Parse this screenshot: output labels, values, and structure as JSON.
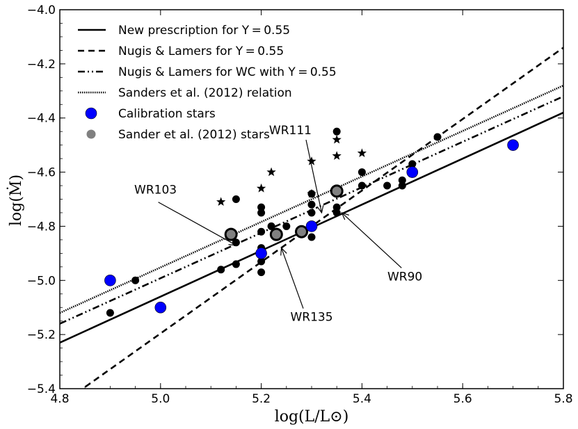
{
  "chart_data": {
    "type": "scatter",
    "xlabel": "log(L/L⊙)",
    "ylabel": "log(Ṁ)",
    "xlim": [
      4.8,
      5.8
    ],
    "ylim": [
      -5.4,
      -4.0
    ],
    "xticks": [
      4.8,
      5.0,
      5.2,
      5.4,
      5.6,
      5.8
    ],
    "xtick_labels": [
      "4.8",
      "5.0",
      "5.2",
      "5.4",
      "5.6",
      "5.8"
    ],
    "yticks": [
      -5.4,
      -5.2,
      -5.0,
      -4.8,
      -4.6,
      -4.4,
      -4.2,
      -4.0
    ],
    "ytick_labels": [
      "−5.4",
      "−5.2",
      "−5.0",
      "−4.8",
      "−4.6",
      "−4.4",
      "−4.2",
      "−4.0"
    ],
    "grid": false,
    "legend_position": "top-left",
    "lines": [
      {
        "name": "New prescription for Y = 0.55",
        "style": "solid",
        "x": [
          4.8,
          5.8
        ],
        "y": [
          -5.23,
          -4.38
        ]
      },
      {
        "name": "Nugis & Lamers for Y = 0.55",
        "style": "dashed",
        "x": [
          4.8,
          5.8
        ],
        "y": [
          -5.46,
          -4.14
        ]
      },
      {
        "name": "Nugis & Lamers for WC with Y = 0.55",
        "style": "dashdot",
        "x": [
          4.8,
          5.8
        ],
        "y": [
          -5.16,
          -4.32
        ]
      },
      {
        "name": "Sanders et al. (2012) relation",
        "style": "dotted",
        "x": [
          4.8,
          5.8
        ],
        "y": [
          -5.12,
          -4.28
        ]
      }
    ],
    "calibration_stars": {
      "name": "Calibration stars",
      "color": "#0000ff",
      "x": [
        4.9,
        5.0,
        5.2,
        5.3,
        5.5,
        5.7
      ],
      "y": [
        -5.0,
        -5.1,
        -4.9,
        -4.8,
        -4.6,
        -4.5
      ]
    },
    "sander_stars": {
      "name": "Sander et al. (2012) stars",
      "color": "#808080",
      "x": [
        5.14,
        5.23,
        5.28,
        5.35
      ],
      "y": [
        -4.83,
        -4.83,
        -4.82,
        -4.67
      ]
    },
    "black_points": {
      "x": [
        4.9,
        4.95,
        5.12,
        5.15,
        5.15,
        5.15,
        5.2,
        5.2,
        5.2,
        5.2,
        5.2,
        5.2,
        5.22,
        5.23,
        5.25,
        5.3,
        5.3,
        5.3,
        5.3,
        5.35,
        5.35,
        5.35,
        5.4,
        5.4,
        5.45,
        5.48,
        5.48,
        5.5,
        5.55
      ],
      "y": [
        -5.12,
        -5.0,
        -4.96,
        -4.94,
        -4.86,
        -4.7,
        -4.97,
        -4.93,
        -4.82,
        -4.75,
        -4.73,
        -4.88,
        -4.8,
        -4.82,
        -4.8,
        -4.84,
        -4.75,
        -4.72,
        -4.68,
        -4.75,
        -4.73,
        -4.45,
        -4.65,
        -4.6,
        -4.65,
        -4.65,
        -4.63,
        -4.57,
        -4.47
      ]
    },
    "star_markers": {
      "x": [
        5.12,
        5.2,
        5.22,
        5.3,
        5.3,
        5.35,
        5.35,
        5.4
      ],
      "y": [
        -4.71,
        -4.66,
        -4.6,
        -4.68,
        -4.56,
        -4.54,
        -4.48,
        -4.53
      ]
    },
    "annotations": [
      {
        "text": "WR103",
        "text_xy": [
          4.99,
          -4.68
        ],
        "arrow_xy": [
          5.15,
          -4.87
        ],
        "align": "middle"
      },
      {
        "text": "WR111",
        "text_xy": [
          5.3,
          -4.46
        ],
        "arrow_xy": [
          5.32,
          -4.75
        ],
        "align": "end"
      },
      {
        "text": "WR90",
        "text_xy": [
          5.52,
          -5.0
        ],
        "arrow_xy": [
          5.36,
          -4.75
        ],
        "align": "end"
      },
      {
        "text": "WR135",
        "text_xy": [
          5.3,
          -5.15
        ],
        "arrow_xy": [
          5.24,
          -4.88
        ],
        "align": "middle"
      }
    ],
    "legend": [
      {
        "label": "New prescription for Y = 0.55",
        "kind": "solid"
      },
      {
        "label": "Nugis & Lamers for Y = 0.55",
        "kind": "dashed"
      },
      {
        "label": "Nugis & Lamers for WC with Y = 0.55",
        "kind": "dashdot"
      },
      {
        "label": "Sanders et al. (2012) relation",
        "kind": "dotted"
      },
      {
        "label": "Calibration stars",
        "kind": "blue-dot"
      },
      {
        "label": "Sander et al. (2012) stars",
        "kind": "gray-dot"
      }
    ]
  }
}
